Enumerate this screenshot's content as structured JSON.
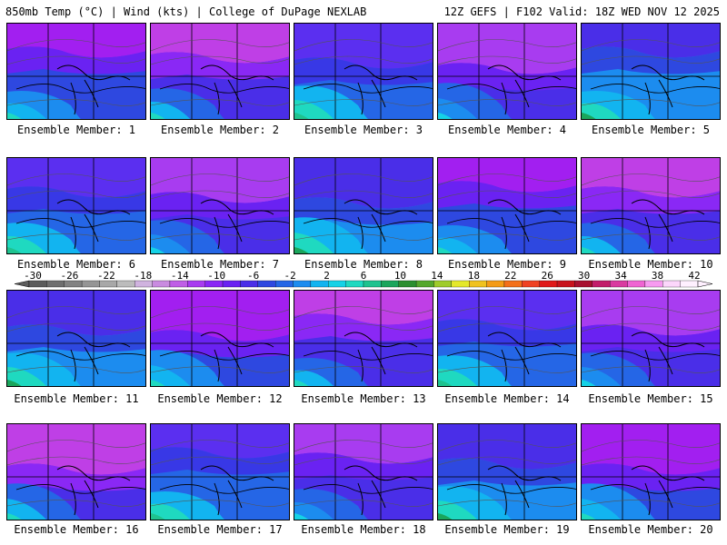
{
  "header": {
    "left": "850mb Temp (°C) | Wind (kts) | College of DuPage NEXLAB",
    "right": "12Z GEFS | F102 Valid: 18Z WED NOV 12 2025"
  },
  "label_prefix": "Ensemble Member: ",
  "members": [
    "1",
    "2",
    "3",
    "4",
    "5",
    "6",
    "7",
    "8",
    "9",
    "10",
    "11",
    "12",
    "13",
    "14",
    "15",
    "16",
    "17",
    "18",
    "19",
    "20"
  ],
  "colorbar": {
    "labels": [
      "-30",
      "-26",
      "-22",
      "-18",
      "-14",
      "-10",
      "-6",
      "-2",
      "2",
      "6",
      "10",
      "14",
      "18",
      "22",
      "26",
      "30",
      "34",
      "38",
      "42"
    ],
    "colors": [
      "#5c5c5c",
      "#6f6f6f",
      "#828282",
      "#959595",
      "#a8a8a8",
      "#bcbcbc",
      "#d0b3df",
      "#c98be0",
      "#bf5fe6",
      "#a83cf0",
      "#8a28f5",
      "#6a22f2",
      "#4a2ee8",
      "#2e48e0",
      "#2566e6",
      "#1c8cef",
      "#12b4f0",
      "#15d2e6",
      "#1fd9c0",
      "#1fc38f",
      "#1aa65c",
      "#2c8f2f",
      "#55a82c",
      "#9fcc2a",
      "#e4e82a",
      "#f0c21f",
      "#f49b16",
      "#f3701a",
      "#ef4222",
      "#e01a1a",
      "#c8141c",
      "#a81230",
      "#c21e6a",
      "#d93ca0",
      "#ef64d2",
      "#f79af0",
      "#fcd6fb",
      "#fff0ff"
    ]
  }
}
